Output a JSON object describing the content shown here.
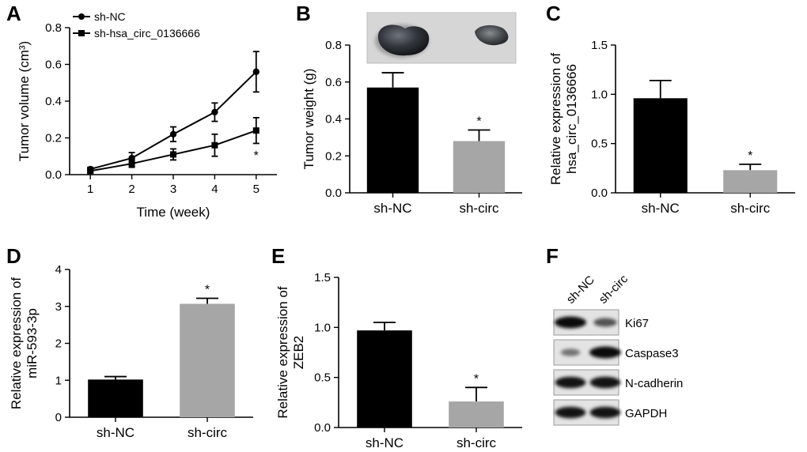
{
  "chart_data": [
    {
      "panel": "A",
      "type": "line",
      "xlabel": "Time (week)",
      "ylabel": "Tumor volume (cm³)",
      "x": [
        1,
        2,
        3,
        4,
        5
      ],
      "xlim": [
        0.5,
        5.5
      ],
      "ylim": [
        0,
        0.8
      ],
      "yticks": [
        "0.0",
        "0.2",
        "0.4",
        "0.6",
        "0.8"
      ],
      "legend": "top-left",
      "series": [
        {
          "name": "sh-NC",
          "marker": "circle",
          "values": [
            0.03,
            0.09,
            0.22,
            0.34,
            0.56
          ],
          "errors": [
            0.01,
            0.03,
            0.04,
            0.05,
            0.11
          ]
        },
        {
          "name": "sh-hsa_circ_0136666",
          "marker": "square",
          "values": [
            0.02,
            0.06,
            0.11,
            0.16,
            0.24
          ],
          "errors": [
            0.01,
            0.02,
            0.03,
            0.06,
            0.07
          ]
        }
      ],
      "annotations": [
        {
          "x": 5,
          "y": 0.1,
          "text": "*"
        }
      ]
    },
    {
      "panel": "B",
      "type": "bar",
      "ylabel": "Tumor weight (g)",
      "categories": [
        "sh-NC",
        "sh-circ"
      ],
      "values": [
        0.57,
        0.28
      ],
      "errors": [
        0.08,
        0.06
      ],
      "colors": [
        "#000000",
        "#a6a6a6"
      ],
      "ylim": [
        0,
        0.8
      ],
      "yticks": [
        "0.0",
        "0.2",
        "0.4",
        "0.6",
        "0.8"
      ],
      "stars": [
        "",
        "*"
      ],
      "inset": "tumor-photo"
    },
    {
      "panel": "C",
      "type": "bar",
      "ylabel_lines": [
        "Relative expression of",
        "hsa_circ_0136666"
      ],
      "categories": [
        "sh-NC",
        "sh-circ"
      ],
      "values": [
        0.96,
        0.23
      ],
      "errors": [
        0.18,
        0.06
      ],
      "colors": [
        "#000000",
        "#a6a6a6"
      ],
      "ylim": [
        0,
        1.5
      ],
      "yticks": [
        "0.0",
        "0.5",
        "1.0",
        "1.5"
      ],
      "stars": [
        "",
        "*"
      ]
    },
    {
      "panel": "D",
      "type": "bar",
      "ylabel_lines": [
        "Relative expression of",
        "miR-593-3p"
      ],
      "categories": [
        "sh-NC",
        "sh-circ"
      ],
      "values": [
        1.02,
        3.07
      ],
      "errors": [
        0.08,
        0.15
      ],
      "colors": [
        "#000000",
        "#a6a6a6"
      ],
      "ylim": [
        0,
        4
      ],
      "yticks": [
        "0",
        "1",
        "2",
        "3",
        "4"
      ],
      "stars": [
        "",
        "*"
      ]
    },
    {
      "panel": "E",
      "type": "bar",
      "ylabel_lines": [
        "Relative expression of",
        "ZEB2"
      ],
      "categories": [
        "sh-NC",
        "sh-circ"
      ],
      "values": [
        0.97,
        0.26
      ],
      "errors": [
        0.08,
        0.14
      ],
      "colors": [
        "#000000",
        "#a6a6a6"
      ],
      "ylim": [
        0,
        1.5
      ],
      "yticks": [
        "0.0",
        "0.5",
        "1.0",
        "1.5"
      ],
      "stars": [
        "",
        "*"
      ]
    },
    {
      "panel": "F",
      "type": "western-blot",
      "lanes": [
        "sh-NC",
        "sh-circ"
      ],
      "rows": [
        {
          "label": "Ki67",
          "intensity": [
            1.0,
            0.55
          ]
        },
        {
          "label": "Caspase3",
          "intensity": [
            0.35,
            1.0
          ]
        },
        {
          "label": "N-cadherin",
          "intensity": [
            0.95,
            0.95
          ]
        },
        {
          "label": "GAPDH",
          "intensity": [
            0.95,
            0.95
          ]
        }
      ]
    }
  ]
}
